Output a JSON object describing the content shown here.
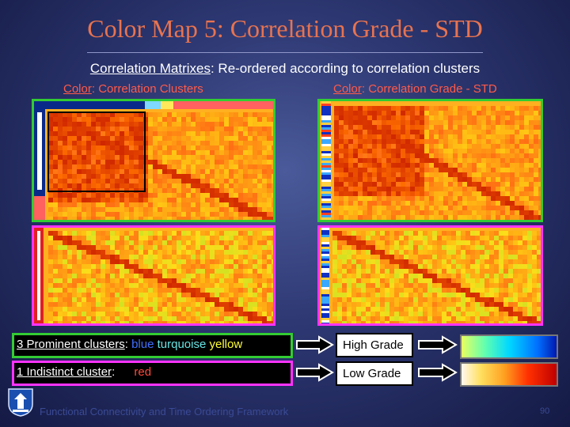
{
  "slide": {
    "title": "Color Map 5: Correlation Grade - STD",
    "subtitle_label": "Correlation Matrixes",
    "subtitle_rest": ": Re-ordered according to correlation clusters",
    "left_header_label": "Color",
    "left_header_rest": ": Correlation Clusters",
    "right_header_label": "Color",
    "right_header_rest": ": Correlation Grade - STD",
    "legend": {
      "prominent_label": "3 Prominent clusters",
      "prominent_colon": ":",
      "cluster_blue": "blue",
      "cluster_turquoise": "turquoise",
      "cluster_yellow": "yellow",
      "indistinct_label": "1 Indistinct cluster",
      "indistinct_colon": ":",
      "cluster_red": "red",
      "high_grade": "High Grade",
      "low_grade": "Low Grade"
    },
    "footer": "Functional Connectivity and Time Ordering Framework",
    "page_number": "90"
  },
  "colors": {
    "title": "#e8734f",
    "header_accent": "#ff5a4a",
    "panel_border_top": "#33cc33",
    "panel_border_bottom": "#ff33ff",
    "legend_border_green": "#33cc33",
    "legend_border_magenta": "#ff33ff",
    "cluster_blue": "#3f6fff",
    "cluster_turquoise": "#66e3e3",
    "cluster_yellow": "#ffff33",
    "cluster_red": "#ff4a3a"
  },
  "icons": {
    "arrow": "right-arrow-icon",
    "logo": "university-logo-icon"
  }
}
